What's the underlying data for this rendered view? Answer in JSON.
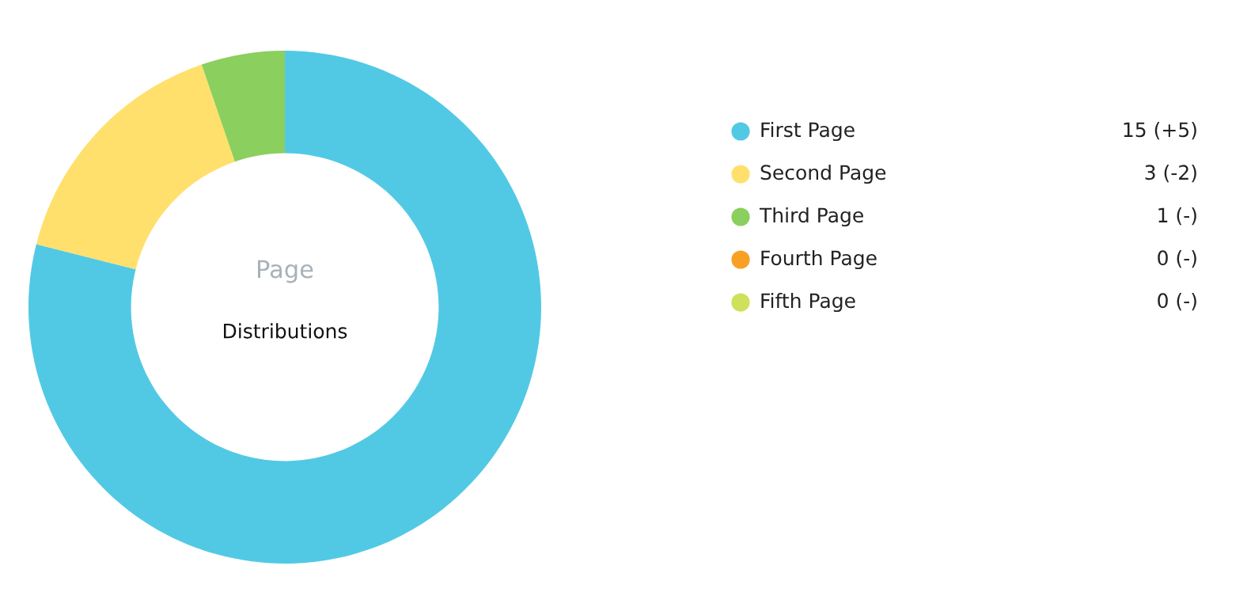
{
  "chart_data": {
    "type": "donut",
    "title": "Page",
    "subtitle": "Distributions",
    "categories": [
      "First Page",
      "Second Page",
      "Third Page",
      "Fourth Page",
      "Fifth Page"
    ],
    "values": [
      15,
      3,
      1,
      0,
      0
    ],
    "colors": [
      "#52c9e4",
      "#ffe06c",
      "#8bcf5e",
      "#f9a024",
      "#cfe05a"
    ],
    "value_labels": [
      "15 (+5)",
      "3 (-2)",
      "1 (-)",
      "0 (-)",
      "0 (-)"
    ],
    "legend": "right"
  }
}
